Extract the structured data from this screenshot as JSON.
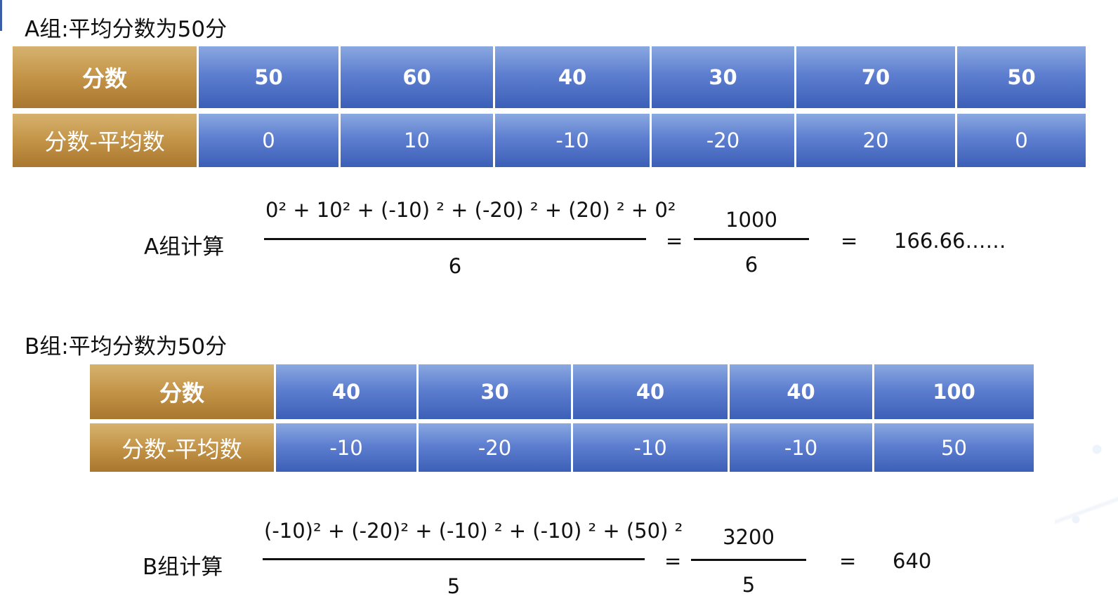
{
  "groupA": {
    "heading": "A组:平均分数为50分",
    "row_labels": {
      "score": "分数",
      "deviation": "分数-平均数"
    },
    "scores": [
      "50",
      "60",
      "40",
      "30",
      "70",
      "50"
    ],
    "deviations": [
      "0",
      "10",
      "-10",
      "-20",
      "20",
      "0"
    ],
    "calc": {
      "label": "A组计算",
      "numerator": "0² + 10² + (-10) ² + (-20) ² + (20) ² + 0²",
      "denominator": "6",
      "equals_1": "=",
      "sum": "1000",
      "sum_denominator": "6",
      "equals_2": "=",
      "result": "166.66……"
    }
  },
  "groupB": {
    "heading": "B组:平均分数为50分",
    "row_labels": {
      "score": "分数",
      "deviation": "分数-平均数"
    },
    "scores": [
      "40",
      "30",
      "40",
      "40",
      "100"
    ],
    "deviations": [
      "-10",
      "-20",
      "-10",
      "-10",
      "50"
    ],
    "calc": {
      "label": "B组计算",
      "numerator": "(-10)² + (-20)² + (-10) ² + (-10) ² + (50) ²",
      "denominator": "5",
      "equals_1": "=",
      "sum": "3200",
      "sum_denominator": "5",
      "equals_2": "=",
      "result": "640"
    }
  },
  "colors": {
    "header_gold": "#c39448",
    "cell_blue": "#5e7fd0",
    "text_dark": "#111111"
  }
}
